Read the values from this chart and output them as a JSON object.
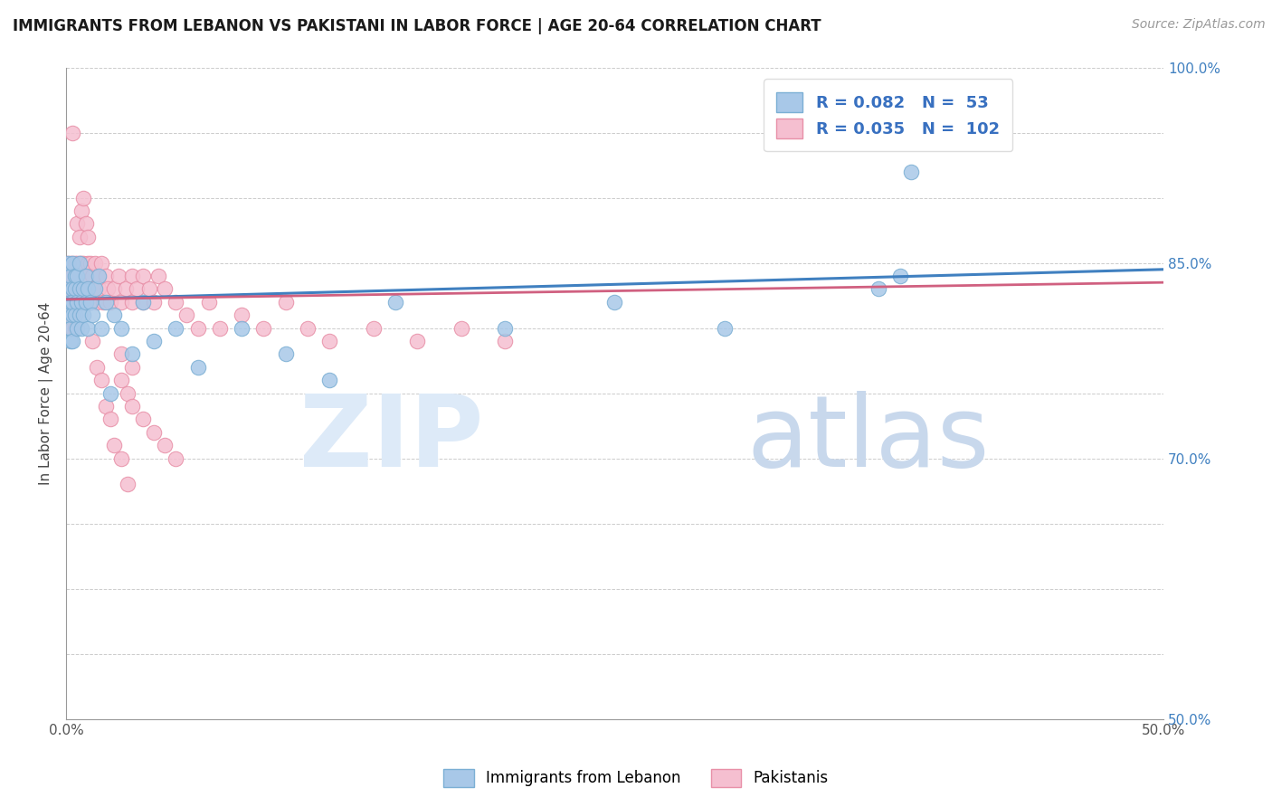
{
  "title": "IMMIGRANTS FROM LEBANON VS PAKISTANI IN LABOR FORCE | AGE 20-64 CORRELATION CHART",
  "source": "Source: ZipAtlas.com",
  "ylabel": "In Labor Force | Age 20-64",
  "xlim": [
    0.0,
    0.5
  ],
  "ylim": [
    0.5,
    1.0
  ],
  "xticks": [
    0.0,
    0.1,
    0.2,
    0.3,
    0.4,
    0.5
  ],
  "xticklabels": [
    "0.0%",
    "",
    "",
    "",
    "",
    "50.0%"
  ],
  "ytick_vals": [
    0.5,
    0.55,
    0.6,
    0.65,
    0.7,
    0.75,
    0.8,
    0.85,
    0.9,
    0.95,
    1.0
  ],
  "ytick_labels_right": [
    "50.0%",
    "",
    "",
    "",
    "70.0%",
    "",
    "",
    "85.0%",
    "",
    "",
    "100.0%"
  ],
  "lebanon_fill": "#a8c8e8",
  "lebanon_edge": "#7bafd4",
  "pakistan_fill": "#f5bfd0",
  "pakistan_edge": "#e890a8",
  "trend_lebanon_color": "#4080c0",
  "trend_pakistan_color": "#d06080",
  "legend_text_color": "#3870c0",
  "legend_R_lebanon": "0.082",
  "legend_N_lebanon": "53",
  "legend_R_pakistan": "0.035",
  "legend_N_pakistan": "102",
  "grid_color": "#cccccc",
  "background_color": "#ffffff",
  "axis_color": "#999999",
  "tick_label_color": "#555555",
  "right_tick_color": "#4080c0",
  "lebanon_x": [
    0.001,
    0.001,
    0.001,
    0.002,
    0.002,
    0.002,
    0.002,
    0.003,
    0.003,
    0.003,
    0.003,
    0.003,
    0.004,
    0.004,
    0.004,
    0.005,
    0.005,
    0.005,
    0.006,
    0.006,
    0.006,
    0.007,
    0.007,
    0.008,
    0.008,
    0.009,
    0.009,
    0.01,
    0.01,
    0.011,
    0.012,
    0.013,
    0.015,
    0.016,
    0.018,
    0.02,
    0.022,
    0.025,
    0.03,
    0.035,
    0.04,
    0.05,
    0.06,
    0.08,
    0.1,
    0.12,
    0.15,
    0.2,
    0.25,
    0.3,
    0.37,
    0.38,
    0.385
  ],
  "lebanon_y": [
    0.83,
    0.81,
    0.85,
    0.82,
    0.79,
    0.84,
    0.8,
    0.83,
    0.81,
    0.85,
    0.82,
    0.79,
    0.84,
    0.81,
    0.83,
    0.82,
    0.8,
    0.84,
    0.83,
    0.81,
    0.85,
    0.82,
    0.8,
    0.83,
    0.81,
    0.84,
    0.82,
    0.83,
    0.8,
    0.82,
    0.81,
    0.83,
    0.84,
    0.8,
    0.82,
    0.75,
    0.81,
    0.8,
    0.78,
    0.82,
    0.79,
    0.8,
    0.77,
    0.8,
    0.78,
    0.76,
    0.82,
    0.8,
    0.82,
    0.8,
    0.83,
    0.84,
    0.92
  ],
  "pakistan_x": [
    0.001,
    0.001,
    0.001,
    0.001,
    0.002,
    0.002,
    0.002,
    0.002,
    0.002,
    0.003,
    0.003,
    0.003,
    0.003,
    0.003,
    0.003,
    0.004,
    0.004,
    0.004,
    0.004,
    0.005,
    0.005,
    0.005,
    0.005,
    0.006,
    0.006,
    0.006,
    0.007,
    0.007,
    0.007,
    0.007,
    0.008,
    0.008,
    0.008,
    0.009,
    0.009,
    0.01,
    0.01,
    0.01,
    0.011,
    0.011,
    0.012,
    0.012,
    0.013,
    0.014,
    0.015,
    0.015,
    0.016,
    0.017,
    0.018,
    0.019,
    0.02,
    0.022,
    0.024,
    0.025,
    0.027,
    0.03,
    0.03,
    0.032,
    0.035,
    0.035,
    0.038,
    0.04,
    0.042,
    0.045,
    0.05,
    0.055,
    0.06,
    0.065,
    0.07,
    0.08,
    0.09,
    0.1,
    0.11,
    0.12,
    0.14,
    0.16,
    0.18,
    0.2,
    0.025,
    0.03,
    0.025,
    0.028,
    0.03,
    0.035,
    0.04,
    0.045,
    0.05,
    0.012,
    0.014,
    0.016,
    0.018,
    0.02,
    0.022,
    0.025,
    0.028,
    0.005,
    0.006,
    0.007,
    0.008,
    0.009,
    0.01,
    0.003
  ],
  "pakistan_y": [
    0.84,
    0.82,
    0.85,
    0.83,
    0.84,
    0.82,
    0.85,
    0.83,
    0.81,
    0.84,
    0.82,
    0.85,
    0.83,
    0.8,
    0.84,
    0.83,
    0.85,
    0.82,
    0.8,
    0.84,
    0.82,
    0.85,
    0.83,
    0.84,
    0.82,
    0.85,
    0.83,
    0.85,
    0.82,
    0.84,
    0.83,
    0.85,
    0.82,
    0.84,
    0.83,
    0.85,
    0.82,
    0.84,
    0.85,
    0.82,
    0.84,
    0.83,
    0.85,
    0.82,
    0.84,
    0.83,
    0.85,
    0.82,
    0.84,
    0.83,
    0.82,
    0.83,
    0.84,
    0.82,
    0.83,
    0.84,
    0.82,
    0.83,
    0.84,
    0.82,
    0.83,
    0.82,
    0.84,
    0.83,
    0.82,
    0.81,
    0.8,
    0.82,
    0.8,
    0.81,
    0.8,
    0.82,
    0.8,
    0.79,
    0.8,
    0.79,
    0.8,
    0.79,
    0.78,
    0.77,
    0.76,
    0.75,
    0.74,
    0.73,
    0.72,
    0.71,
    0.7,
    0.79,
    0.77,
    0.76,
    0.74,
    0.73,
    0.71,
    0.7,
    0.68,
    0.88,
    0.87,
    0.89,
    0.9,
    0.88,
    0.87,
    0.95
  ],
  "trend_lb_x0": 0.0,
  "trend_lb_y0": 0.822,
  "trend_lb_x1": 0.5,
  "trend_lb_y1": 0.845,
  "trend_pk_x0": 0.0,
  "trend_pk_y0": 0.822,
  "trend_pk_x1": 0.5,
  "trend_pk_y1": 0.835
}
